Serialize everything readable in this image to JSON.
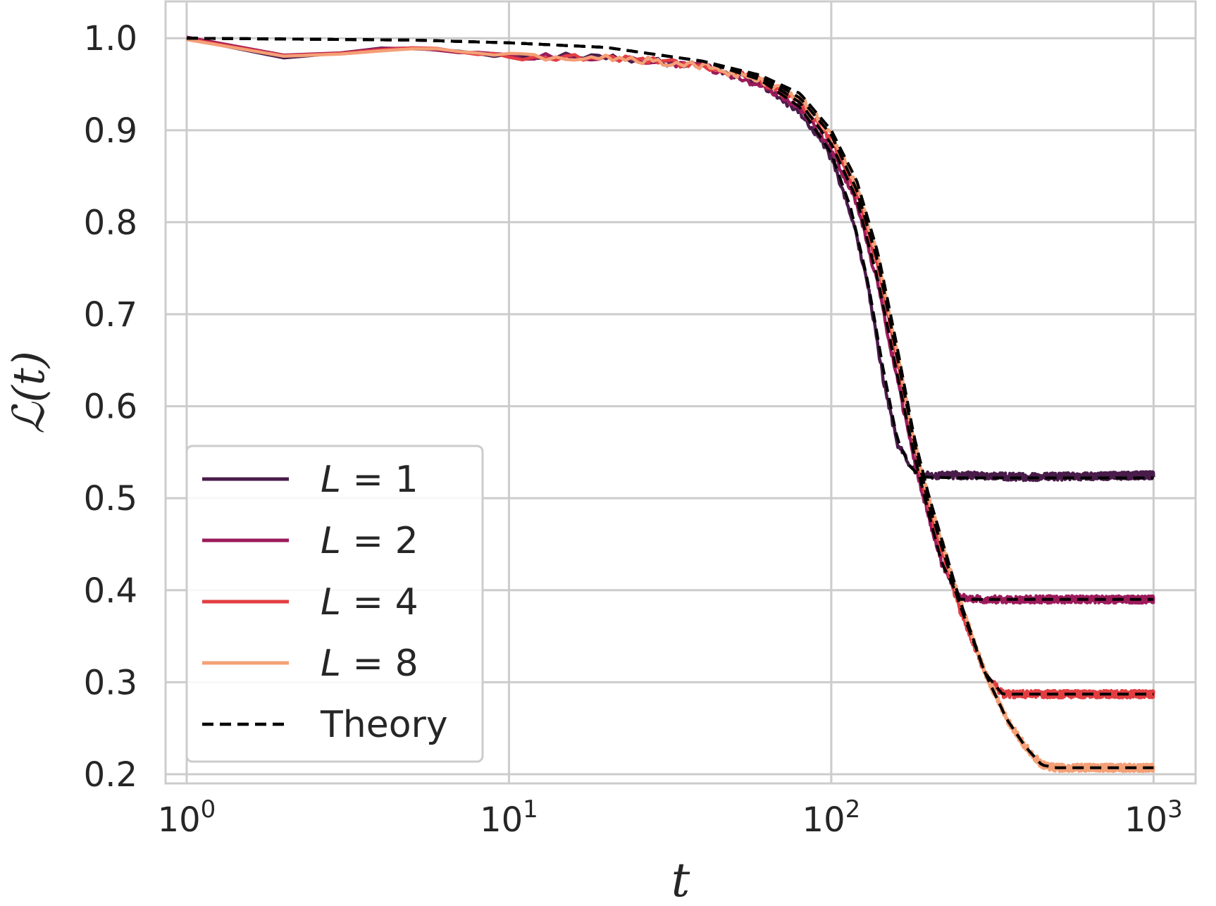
{
  "chart_data": {
    "type": "line",
    "xlabel": "t",
    "ylabel": "ℒ(t)",
    "xscale": "log",
    "xlim": [
      0.86,
      1350
    ],
    "ylim": [
      0.19,
      1.04
    ],
    "grid": true,
    "legend_position": "lower-left",
    "x_ticks": [
      {
        "value": 1,
        "base": "10",
        "exp": "0"
      },
      {
        "value": 10,
        "base": "10",
        "exp": "1"
      },
      {
        "value": 100,
        "base": "10",
        "exp": "2"
      },
      {
        "value": 1000,
        "base": "10",
        "exp": "3"
      }
    ],
    "y_ticks": [
      {
        "value": 0.2,
        "label": "0.2"
      },
      {
        "value": 0.3,
        "label": "0.3"
      },
      {
        "value": 0.4,
        "label": "0.4"
      },
      {
        "value": 0.5,
        "label": "0.5"
      },
      {
        "value": 0.6,
        "label": "0.6"
      },
      {
        "value": 0.7,
        "label": "0.7"
      },
      {
        "value": 0.8,
        "label": "0.8"
      },
      {
        "value": 0.9,
        "label": "0.9"
      },
      {
        "value": 1.0,
        "label": "1.0"
      }
    ],
    "series": [
      {
        "name": "L = 1",
        "symbol": "L",
        "value": "1",
        "color": "#4a1c4a",
        "x": [
          1,
          2,
          5,
          10,
          20,
          40,
          60,
          80,
          100,
          115,
          130,
          145,
          160,
          175,
          190,
          250,
          400,
          1000
        ],
        "y": [
          1.0,
          0.98,
          0.99,
          0.98,
          0.98,
          0.97,
          0.95,
          0.92,
          0.87,
          0.81,
          0.73,
          0.63,
          0.56,
          0.535,
          0.525,
          0.525,
          0.523,
          0.525
        ]
      },
      {
        "name": "L = 2",
        "symbol": "L",
        "value": "2",
        "color": "#9b1b5a",
        "x": [
          1,
          2,
          5,
          10,
          20,
          40,
          60,
          80,
          100,
          120,
          140,
          160,
          180,
          200,
          220,
          250,
          300,
          1000
        ],
        "y": [
          1.0,
          0.98,
          0.99,
          0.98,
          0.98,
          0.97,
          0.95,
          0.925,
          0.88,
          0.82,
          0.73,
          0.63,
          0.545,
          0.48,
          0.43,
          0.392,
          0.39,
          0.39
        ]
      },
      {
        "name": "L = 4",
        "symbol": "L",
        "value": "4",
        "color": "#e23e42",
        "x": [
          1,
          2,
          5,
          10,
          20,
          40,
          60,
          80,
          100,
          120,
          140,
          160,
          180,
          200,
          250,
          300,
          340,
          1000
        ],
        "y": [
          1.0,
          0.98,
          0.99,
          0.98,
          0.98,
          0.97,
          0.955,
          0.93,
          0.89,
          0.83,
          0.75,
          0.65,
          0.56,
          0.49,
          0.38,
          0.31,
          0.287,
          0.287
        ]
      },
      {
        "name": "L = 8",
        "symbol": "L",
        "value": "8",
        "color": "#f4a077",
        "x": [
          1,
          2,
          5,
          10,
          20,
          40,
          60,
          80,
          100,
          120,
          140,
          160,
          180,
          200,
          250,
          300,
          350,
          400,
          450,
          500,
          1000
        ],
        "y": [
          1.0,
          0.98,
          0.99,
          0.98,
          0.98,
          0.97,
          0.955,
          0.935,
          0.895,
          0.84,
          0.76,
          0.66,
          0.565,
          0.5,
          0.39,
          0.31,
          0.26,
          0.23,
          0.21,
          0.207,
          0.207
        ]
      }
    ],
    "theory": {
      "name": "Theory",
      "color": "#000000",
      "curves": [
        {
          "x": [
            1,
            5,
            10,
            20,
            40,
            60,
            80,
            100,
            115,
            130,
            145,
            160,
            175,
            190,
            250,
            1000
          ],
          "y": [
            1.0,
            0.998,
            0.995,
            0.99,
            0.975,
            0.955,
            0.925,
            0.875,
            0.815,
            0.735,
            0.64,
            0.565,
            0.535,
            0.523,
            0.522,
            0.522
          ]
        },
        {
          "x": [
            1,
            5,
            10,
            20,
            40,
            60,
            80,
            100,
            120,
            140,
            160,
            180,
            200,
            220,
            250,
            300,
            1000
          ],
          "y": [
            1.0,
            0.998,
            0.995,
            0.99,
            0.975,
            0.958,
            0.93,
            0.885,
            0.825,
            0.735,
            0.635,
            0.55,
            0.485,
            0.43,
            0.39,
            0.39,
            0.39
          ]
        },
        {
          "x": [
            1,
            5,
            10,
            20,
            40,
            60,
            80,
            100,
            120,
            140,
            160,
            180,
            200,
            250,
            300,
            340,
            1000
          ],
          "y": [
            1.0,
            0.998,
            0.995,
            0.99,
            0.975,
            0.96,
            0.935,
            0.895,
            0.835,
            0.755,
            0.655,
            0.565,
            0.495,
            0.385,
            0.31,
            0.287,
            0.287
          ]
        },
        {
          "x": [
            1,
            5,
            10,
            20,
            40,
            60,
            80,
            100,
            120,
            140,
            160,
            180,
            200,
            250,
            300,
            350,
            400,
            450,
            500,
            1000
          ],
          "y": [
            1.0,
            0.998,
            0.995,
            0.99,
            0.975,
            0.96,
            0.94,
            0.9,
            0.845,
            0.765,
            0.665,
            0.57,
            0.505,
            0.39,
            0.31,
            0.26,
            0.23,
            0.21,
            0.207,
            0.207
          ]
        }
      ]
    }
  }
}
